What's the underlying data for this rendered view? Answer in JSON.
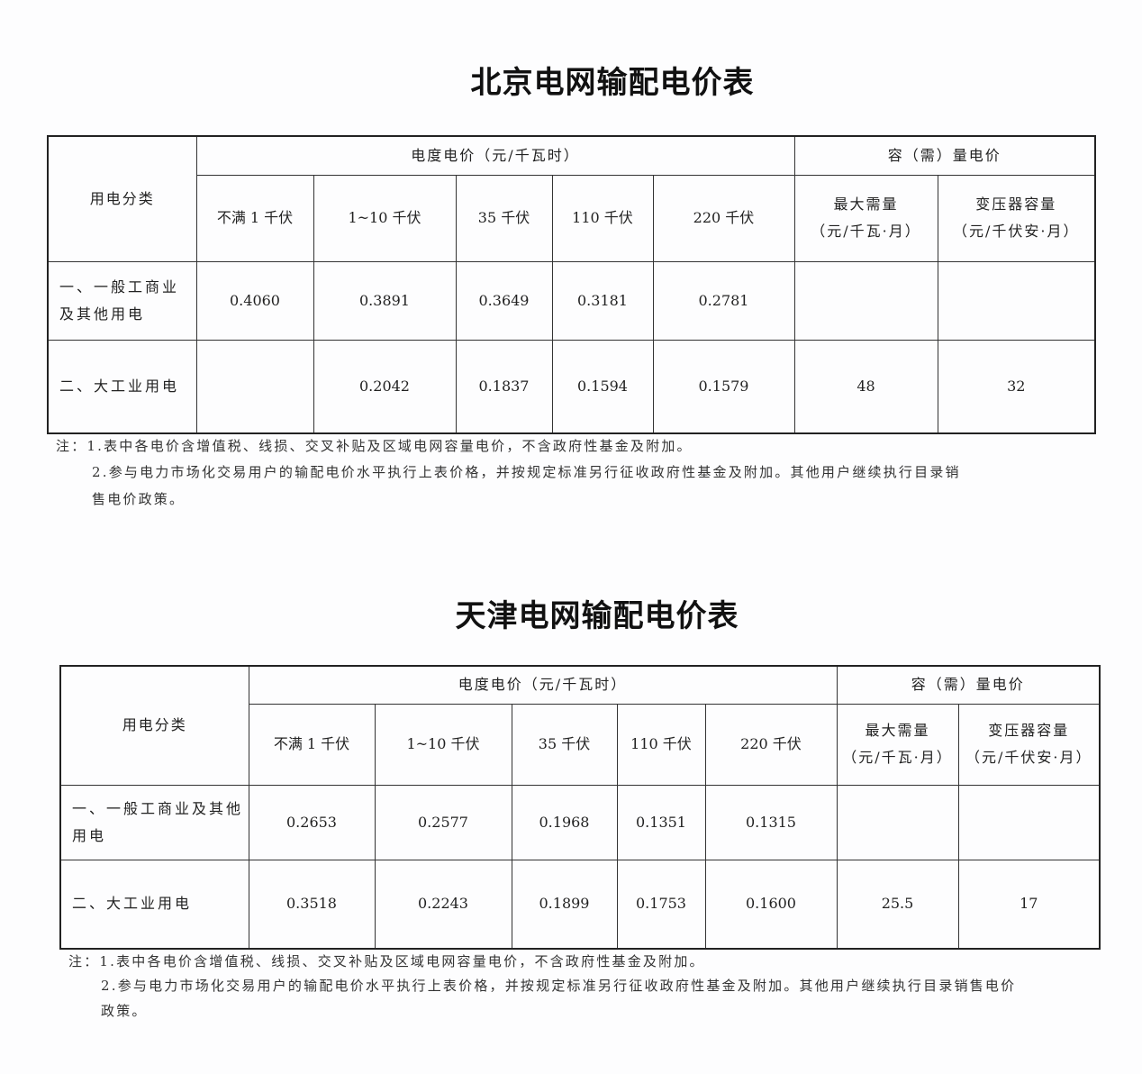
{
  "tables": [
    {
      "title": "北京电网输配电价表",
      "header": {
        "category": "用电分类",
        "energy_price": "电度电价（元/千瓦时）",
        "capacity_price": "容（需）量电价",
        "voltage_levels": [
          "不满 1 千伏",
          "1~10 千伏",
          "35 千伏",
          "110 千伏",
          "220 千伏"
        ],
        "capacity_cols": [
          {
            "line1": "最大需量",
            "line2": "（元/千瓦·月）"
          },
          {
            "line1": "变压器容量",
            "line2": "（元/千伏安·月）"
          }
        ]
      },
      "rows": [
        {
          "category": "一、一般工商业及其他用电",
          "values": [
            "0.4060",
            "0.3891",
            "0.3649",
            "0.3181",
            "0.2781",
            "",
            ""
          ]
        },
        {
          "category": "二、大工业用电",
          "values": [
            "",
            "0.2042",
            "0.1837",
            "0.1594",
            "0.1579",
            "48",
            "32"
          ]
        }
      ],
      "notes": [
        "注：1.表中各电价含增值税、线损、交叉补贴及区域电网容量电价，不含政府性基金及附加。",
        "2.参与电力市场化交易用户的输配电价水平执行上表价格，并按规定标准另行征收政府性基金及附加。其他用户继续执行目录销",
        "售电价政策。"
      ]
    },
    {
      "title": "天津电网输配电价表",
      "header": {
        "category": "用电分类",
        "energy_price": "电度电价（元/千瓦时）",
        "capacity_price": "容（需）量电价",
        "voltage_levels": [
          "不满 1 千伏",
          "1~10 千伏",
          "35 千伏",
          "110 千伏",
          "220 千伏"
        ],
        "capacity_cols": [
          {
            "line1": "最大需量",
            "line2": "（元/千瓦·月）"
          },
          {
            "line1": "变压器容量",
            "line2": "（元/千伏安·月）"
          }
        ]
      },
      "rows": [
        {
          "category": "一、一般工商业及其他用电",
          "values": [
            "0.2653",
            "0.2577",
            "0.1968",
            "0.1351",
            "0.1315",
            "",
            ""
          ]
        },
        {
          "category": "二、大工业用电",
          "values": [
            "0.3518",
            "0.2243",
            "0.1899",
            "0.1753",
            "0.1600",
            "25.5",
            "17"
          ]
        }
      ],
      "notes": [
        "注：1.表中各电价含增值税、线损、交叉补贴及区域电网容量电价，不含政府性基金及附加。",
        "2.参与电力市场化交易用户的输配电价水平执行上表价格，并按规定标准另行征收政府性基金及附加。其他用户继续执行目录销售电价",
        "政策。"
      ]
    }
  ]
}
